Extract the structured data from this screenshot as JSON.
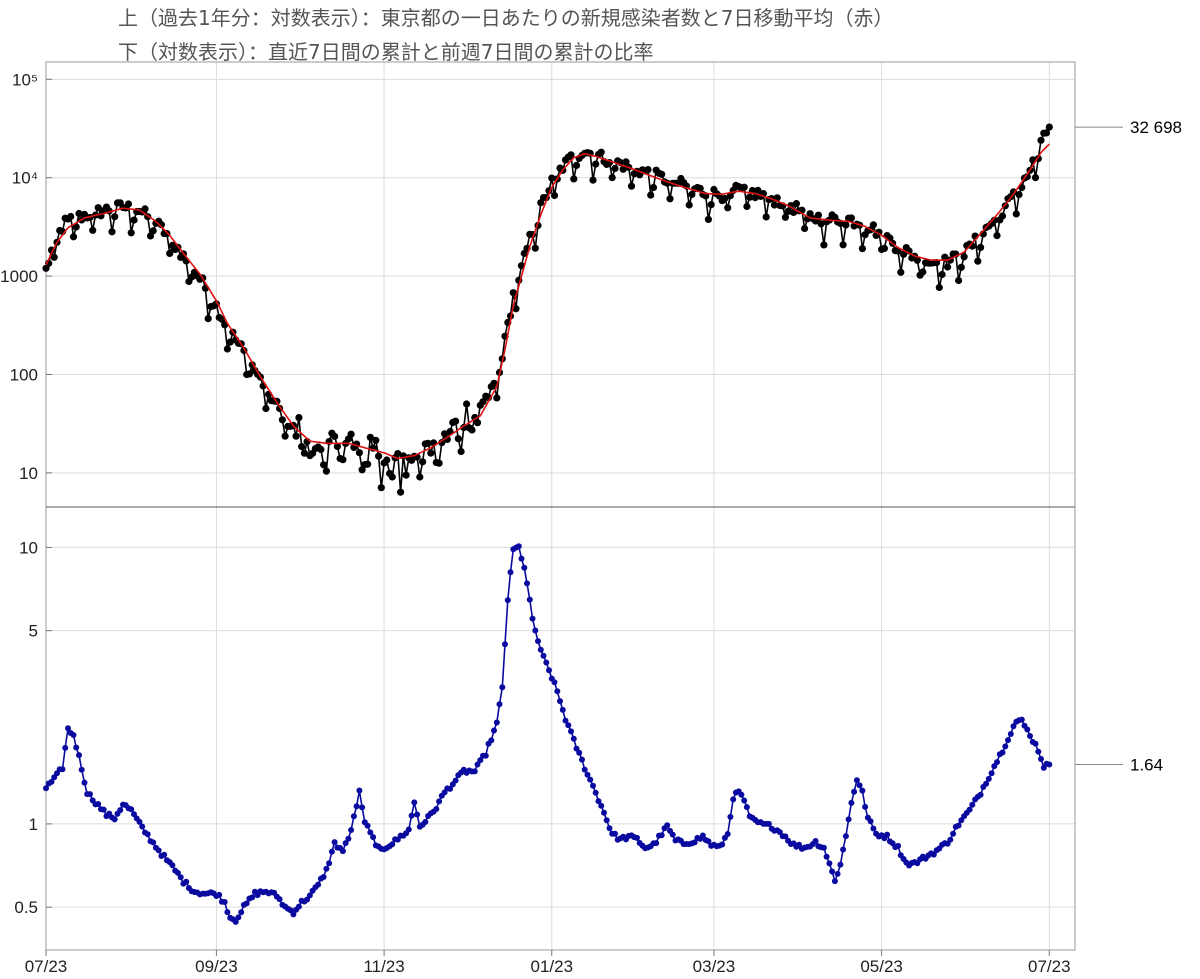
{
  "titles": {
    "line1": "上（過去1年分：対数表示）：東京都の一日あたりの新規感染者数と7日移動平均（赤）",
    "line2": "下（対数表示）：直近7日間の累計と前週7日間の累計の比率"
  },
  "colors": {
    "daily": "#000000",
    "moving_average": "#dd1111",
    "ratio": "#0a0aa0",
    "grid": "#dcdcdc",
    "frame": "#aaaaaa"
  },
  "chart_data": [
    {
      "type": "line",
      "panel": "top",
      "yscale": "log",
      "ylim": [
        4.5,
        150000
      ],
      "x_range_days": [
        0,
        365
      ],
      "x_ticks": [
        {
          "day": 0,
          "label": "07/23"
        },
        {
          "day": 62,
          "label": "09/23"
        },
        {
          "day": 123,
          "label": "11/23"
        },
        {
          "day": 184,
          "label": "01/23"
        },
        {
          "day": 243,
          "label": "03/23"
        },
        {
          "day": 304,
          "label": "05/23"
        },
        {
          "day": 365,
          "label": "07/23"
        }
      ],
      "y_ticks": [
        {
          "value": 10,
          "label": "10"
        },
        {
          "value": 100,
          "label": "100"
        },
        {
          "value": 1000,
          "label": "1000"
        },
        {
          "value": 10000,
          "label": "10⁴"
        },
        {
          "value": 100000,
          "label": "10⁵"
        }
      ],
      "end_label": "32 698",
      "end_value": 32698,
      "series": [
        {
          "role": "daily",
          "anchors": [
            [
              0,
              1150
            ],
            [
              3,
              2200
            ],
            [
              7,
              3500
            ],
            [
              12,
              4000
            ],
            [
              20,
              4600
            ],
            [
              28,
              5100
            ],
            [
              34,
              4700
            ],
            [
              40,
              3500
            ],
            [
              45,
              2500
            ],
            [
              50,
              1600
            ],
            [
              56,
              950
            ],
            [
              62,
              500
            ],
            [
              66,
              300
            ],
            [
              72,
              170
            ],
            [
              78,
              90
            ],
            [
              84,
              48
            ],
            [
              90,
              28
            ],
            [
              96,
              20
            ],
            [
              102,
              19
            ],
            [
              110,
              20
            ],
            [
              116,
              18
            ],
            [
              123,
              15
            ],
            [
              128,
              13
            ],
            [
              134,
              15
            ],
            [
              140,
              18
            ],
            [
              146,
              24
            ],
            [
              152,
              32
            ],
            [
              158,
              42
            ],
            [
              164,
              90
            ],
            [
              167,
              220
            ],
            [
              170,
              650
            ],
            [
              173,
              1200
            ],
            [
              176,
              2400
            ],
            [
              180,
              5000
            ],
            [
              184,
              9000
            ],
            [
              188,
              13000
            ],
            [
              192,
              17000
            ],
            [
              196,
              18500
            ],
            [
              200,
              17000
            ],
            [
              206,
              15000
            ],
            [
              212,
              13000
            ],
            [
              218,
              11500
            ],
            [
              224,
              10000
            ],
            [
              232,
              8500
            ],
            [
              240,
              7000
            ],
            [
              246,
              6800
            ],
            [
              252,
              7500
            ],
            [
              258,
              7000
            ],
            [
              264,
              6200
            ],
            [
              270,
              5500
            ],
            [
              278,
              4000
            ],
            [
              285,
              3800
            ],
            [
              292,
              3800
            ],
            [
              298,
              3400
            ],
            [
              304,
              2700
            ],
            [
              310,
              2000
            ],
            [
              316,
              1600
            ],
            [
              322,
              1400
            ],
            [
              328,
              1400
            ],
            [
              334,
              1700
            ],
            [
              340,
              2600
            ],
            [
              346,
              4000
            ],
            [
              352,
              6500
            ],
            [
              358,
              12000
            ],
            [
              362,
              22000
            ],
            [
              365,
              32698
            ]
          ]
        },
        {
          "role": "moving_average",
          "anchors": [
            [
              0,
              1300
            ],
            [
              4,
              2200
            ],
            [
              8,
              3100
            ],
            [
              14,
              3900
            ],
            [
              22,
              4400
            ],
            [
              28,
              4900
            ],
            [
              34,
              4700
            ],
            [
              40,
              3600
            ],
            [
              45,
              2600
            ],
            [
              50,
              1700
            ],
            [
              56,
              1050
            ],
            [
              62,
              560
            ],
            [
              66,
              330
            ],
            [
              72,
              185
            ],
            [
              78,
              95
            ],
            [
              84,
              52
            ],
            [
              90,
              30
            ],
            [
              96,
              21
            ],
            [
              102,
              20
            ],
            [
              110,
              20
            ],
            [
              116,
              18
            ],
            [
              123,
              16
            ],
            [
              128,
              14
            ],
            [
              134,
              15
            ],
            [
              140,
              18
            ],
            [
              146,
              23
            ],
            [
              152,
              30
            ],
            [
              158,
              38
            ],
            [
              164,
              75
            ],
            [
              167,
              180
            ],
            [
              170,
              500
            ],
            [
              173,
              1000
            ],
            [
              176,
              2000
            ],
            [
              180,
              4200
            ],
            [
              184,
              8000
            ],
            [
              188,
              12000
            ],
            [
              192,
              16000
            ],
            [
              196,
              17500
            ],
            [
              200,
              16500
            ],
            [
              206,
              14500
            ],
            [
              212,
              12700
            ],
            [
              218,
              11000
            ],
            [
              224,
              9500
            ],
            [
              232,
              8000
            ],
            [
              240,
              6900
            ],
            [
              246,
              6800
            ],
            [
              252,
              7300
            ],
            [
              258,
              6900
            ],
            [
              264,
              6100
            ],
            [
              270,
              5200
            ],
            [
              278,
              3900
            ],
            [
              285,
              3700
            ],
            [
              292,
              3600
            ],
            [
              298,
              3200
            ],
            [
              304,
              2600
            ],
            [
              310,
              1950
            ],
            [
              316,
              1600
            ],
            [
              322,
              1450
            ],
            [
              328,
              1450
            ],
            [
              334,
              1750
            ],
            [
              340,
              2700
            ],
            [
              346,
              4200
            ],
            [
              352,
              6800
            ],
            [
              358,
              12000
            ],
            [
              362,
              18000
            ],
            [
              365,
              22000
            ]
          ]
        }
      ]
    },
    {
      "type": "line",
      "panel": "bottom",
      "yscale": "log",
      "ylim": [
        0.35,
        14
      ],
      "x_range_days": [
        0,
        365
      ],
      "x_ticks": [
        {
          "day": 0,
          "label": "07/23"
        },
        {
          "day": 62,
          "label": "09/23"
        },
        {
          "day": 123,
          "label": "11/23"
        },
        {
          "day": 184,
          "label": "01/23"
        },
        {
          "day": 243,
          "label": "03/23"
        },
        {
          "day": 304,
          "label": "05/23"
        },
        {
          "day": 365,
          "label": "07/23"
        }
      ],
      "y_ticks": [
        {
          "value": 0.5,
          "label": "0.5"
        },
        {
          "value": 1,
          "label": "1"
        },
        {
          "value": 5,
          "label": "5"
        },
        {
          "value": 10,
          "label": "10"
        }
      ],
      "end_label": "1.64",
      "end_value": 1.64,
      "series": [
        {
          "role": "ratio",
          "anchors": [
            [
              0,
              1.35
            ],
            [
              3,
              1.45
            ],
            [
              6,
              1.6
            ],
            [
              8,
              2.2
            ],
            [
              10,
              2.1
            ],
            [
              12,
              1.75
            ],
            [
              15,
              1.3
            ],
            [
              18,
              1.2
            ],
            [
              22,
              1.08
            ],
            [
              25,
              1.05
            ],
            [
              28,
              1.18
            ],
            [
              31,
              1.12
            ],
            [
              34,
              1.0
            ],
            [
              38,
              0.88
            ],
            [
              42,
              0.78
            ],
            [
              46,
              0.7
            ],
            [
              50,
              0.62
            ],
            [
              54,
              0.57
            ],
            [
              58,
              0.56
            ],
            [
              62,
              0.56
            ],
            [
              65,
              0.52
            ],
            [
              67,
              0.46
            ],
            [
              69,
              0.45
            ],
            [
              72,
              0.5
            ],
            [
              76,
              0.56
            ],
            [
              80,
              0.57
            ],
            [
              84,
              0.55
            ],
            [
              87,
              0.5
            ],
            [
              90,
              0.48
            ],
            [
              93,
              0.52
            ],
            [
              96,
              0.55
            ],
            [
              99,
              0.6
            ],
            [
              102,
              0.68
            ],
            [
              105,
              0.85
            ],
            [
              108,
              0.8
            ],
            [
              110,
              0.88
            ],
            [
              112,
              1.05
            ],
            [
              114,
              1.3
            ],
            [
              116,
              1.0
            ],
            [
              118,
              0.95
            ],
            [
              120,
              0.82
            ],
            [
              123,
              0.82
            ],
            [
              126,
              0.85
            ],
            [
              129,
              0.9
            ],
            [
              132,
              0.95
            ],
            [
              134,
              1.2
            ],
            [
              136,
              0.98
            ],
            [
              139,
              1.05
            ],
            [
              142,
              1.15
            ],
            [
              145,
              1.3
            ],
            [
              148,
              1.4
            ],
            [
              152,
              1.55
            ],
            [
              156,
              1.55
            ],
            [
              160,
              1.8
            ],
            [
              164,
              2.3
            ],
            [
              166,
              3.1
            ],
            [
              168,
              6.5
            ],
            [
              170,
              9.8
            ],
            [
              172,
              10
            ],
            [
              174,
              8.5
            ],
            [
              177,
              5.5
            ],
            [
              180,
              4.2
            ],
            [
              182,
              3.8
            ],
            [
              184,
              3.4
            ],
            [
              186,
              3.0
            ],
            [
              189,
              2.4
            ],
            [
              192,
              2.0
            ],
            [
              196,
              1.6
            ],
            [
              200,
              1.3
            ],
            [
              203,
              1.1
            ],
            [
              206,
              0.92
            ],
            [
              209,
              0.88
            ],
            [
              212,
              0.9
            ],
            [
              215,
              0.88
            ],
            [
              218,
              0.82
            ],
            [
              221,
              0.84
            ],
            [
              224,
              0.92
            ],
            [
              226,
              0.98
            ],
            [
              229,
              0.87
            ],
            [
              232,
              0.85
            ],
            [
              236,
              0.87
            ],
            [
              239,
              0.9
            ],
            [
              242,
              0.84
            ],
            [
              245,
              0.82
            ],
            [
              248,
              0.92
            ],
            [
              250,
              1.25
            ],
            [
              252,
              1.3
            ],
            [
              254,
              1.22
            ],
            [
              256,
              1.05
            ],
            [
              260,
              1.0
            ],
            [
              264,
              0.98
            ],
            [
              268,
              0.92
            ],
            [
              272,
              0.84
            ],
            [
              276,
              0.82
            ],
            [
              280,
              0.86
            ],
            [
              283,
              0.82
            ],
            [
              285,
              0.72
            ],
            [
              287,
              0.62
            ],
            [
              289,
              0.72
            ],
            [
              291,
              0.9
            ],
            [
              293,
              1.2
            ],
            [
              295,
              1.45
            ],
            [
              297,
              1.3
            ],
            [
              299,
              1.05
            ],
            [
              302,
              0.92
            ],
            [
              306,
              0.9
            ],
            [
              310,
              0.82
            ],
            [
              313,
              0.72
            ],
            [
              316,
              0.72
            ],
            [
              320,
              0.76
            ],
            [
              324,
              0.8
            ],
            [
              328,
              0.86
            ],
            [
              332,
              1.0
            ],
            [
              336,
              1.12
            ],
            [
              340,
              1.3
            ],
            [
              344,
              1.55
            ],
            [
              348,
              1.85
            ],
            [
              351,
              2.15
            ],
            [
              353,
              2.35
            ],
            [
              355,
              2.35
            ],
            [
              358,
              2.1
            ],
            [
              361,
              1.85
            ],
            [
              363,
              1.62
            ],
            [
              365,
              1.64
            ]
          ]
        }
      ]
    }
  ]
}
